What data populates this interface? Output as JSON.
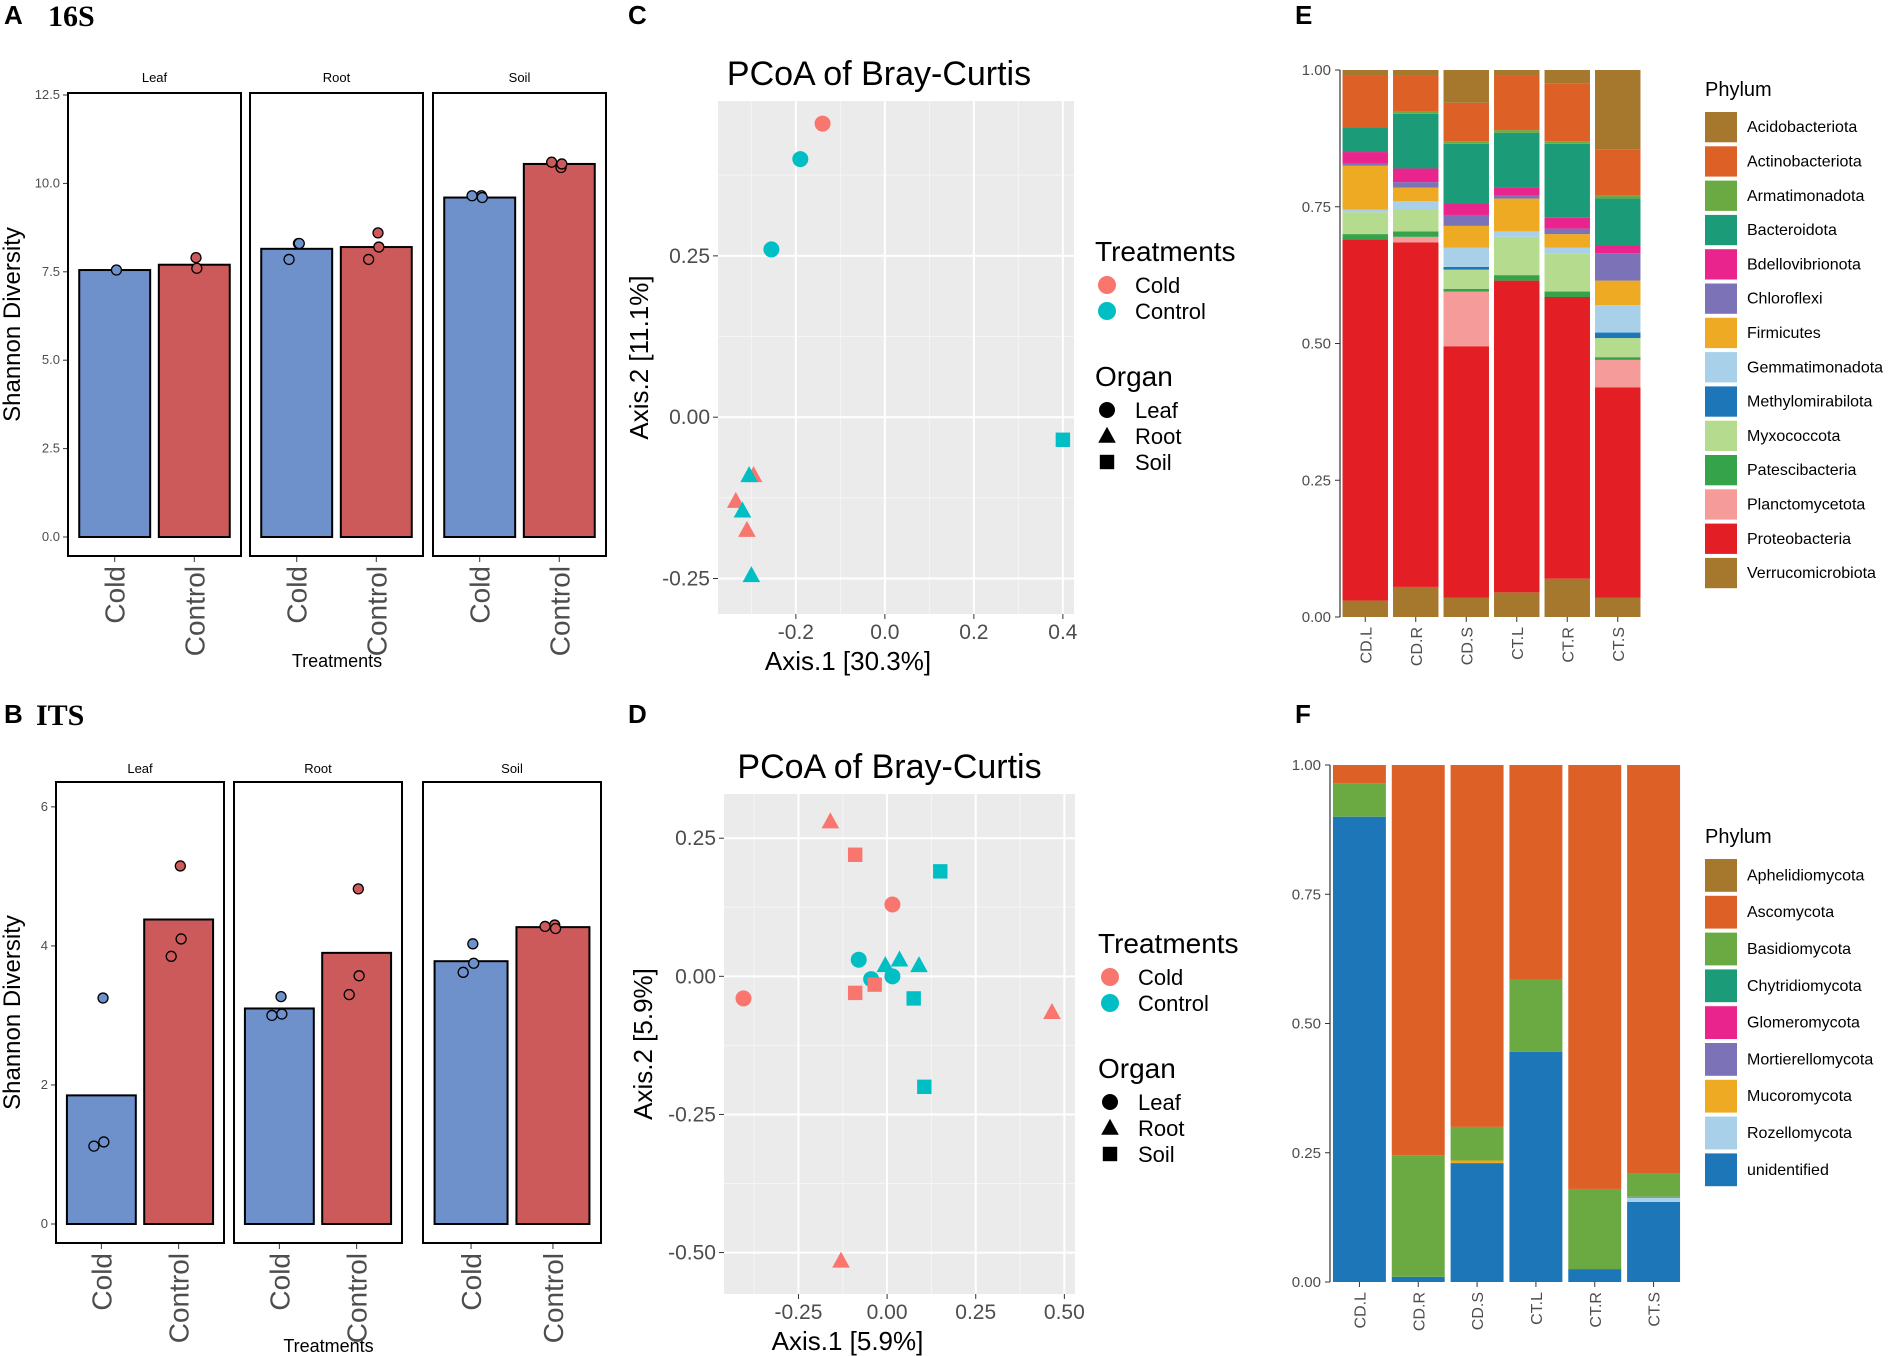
{
  "panel_labels": {
    "A": "A",
    "B": "B",
    "C": "C",
    "D": "D",
    "E": "E",
    "F": "F"
  },
  "panel_subtitles": {
    "A": "16S",
    "B": "ITS"
  },
  "colors": {
    "cold_bar": "#6E91CB",
    "control_bar": "#CD5A5A",
    "cold_point": "#F8766D",
    "control_point": "#00BFC4",
    "pcoa_bg": "#EBEBEB"
  },
  "chart_data": [
    {
      "id": "A",
      "type": "bar",
      "title": "16S",
      "ylabel": "Shannon Diversity",
      "xlabel": "Treatments",
      "ylim": [
        0,
        12.5
      ],
      "yticks": [
        "0.0",
        "2.5",
        "5.0",
        "7.5",
        "10.0",
        "12.5"
      ],
      "ytick_values": [
        0,
        2.5,
        5,
        7.5,
        10,
        12.5
      ],
      "facets": [
        "Leaf",
        "Root",
        "Soil"
      ],
      "categories": [
        "Cold",
        "Control"
      ],
      "bars": [
        [
          7.55,
          7.7
        ],
        [
          8.15,
          8.2
        ],
        [
          9.6,
          10.55
        ]
      ],
      "points": [
        [
          [
            7.55
          ],
          [
            7.9,
            7.6
          ]
        ],
        [
          [
            8.3,
            8.3,
            7.85
          ],
          [
            8.6,
            8.2,
            7.85
          ]
        ],
        [
          [
            9.65,
            9.6,
            9.65
          ],
          [
            10.45,
            10.55,
            10.6
          ]
        ]
      ]
    },
    {
      "id": "B",
      "type": "bar",
      "title": "ITS",
      "ylabel": "Shannon Diversity",
      "xlabel": "Treatments",
      "ylim": [
        0,
        6.3
      ],
      "yticks": [
        "0",
        "2",
        "4",
        "6"
      ],
      "ytick_values": [
        0,
        2,
        4,
        6
      ],
      "facets": [
        "Leaf",
        "Root",
        "Soil"
      ],
      "categories": [
        "Cold",
        "Control"
      ],
      "bars": [
        [
          1.85,
          4.38
        ],
        [
          3.1,
          3.9
        ],
        [
          3.78,
          4.27
        ]
      ],
      "points": [
        [
          [
            3.25,
            1.18,
            1.12
          ],
          [
            5.15,
            4.1,
            3.85
          ]
        ],
        [
          [
            3.27,
            3.02,
            3.0
          ],
          [
            4.82,
            3.57,
            3.3
          ]
        ],
        [
          [
            4.03,
            3.75,
            3.62
          ],
          [
            4.3,
            4.25,
            4.28
          ]
        ]
      ]
    },
    {
      "id": "C",
      "type": "scatter",
      "title": "PCoA of Bray-Curtis",
      "xlabel": "Axis.1   [30.3%]",
      "ylabel": "Axis.2   [11.1%]",
      "xlim": [
        -0.375,
        0.425
      ],
      "ylim": [
        -0.305,
        0.49
      ],
      "xticks": [
        "-0.2",
        "0.0",
        "0.2",
        "0.4"
      ],
      "xtick_values": [
        -0.2,
        0,
        0.2,
        0.4
      ],
      "yticks": [
        "-0.25",
        "0.00",
        "0.25"
      ],
      "ytick_values": [
        -0.25,
        0,
        0.25
      ],
      "points": [
        {
          "x": -0.14,
          "y": 0.455,
          "treatment": "Cold",
          "organ": "Leaf"
        },
        {
          "x": -0.19,
          "y": 0.4,
          "treatment": "Control",
          "organ": "Leaf"
        },
        {
          "x": -0.255,
          "y": 0.26,
          "treatment": "Control",
          "organ": "Leaf"
        },
        {
          "x": 0.4,
          "y": -0.035,
          "treatment": "Control",
          "organ": "Soil"
        },
        {
          "x": -0.295,
          "y": -0.09,
          "treatment": "Cold",
          "organ": "Root"
        },
        {
          "x": -0.305,
          "y": -0.09,
          "treatment": "Control",
          "organ": "Root"
        },
        {
          "x": -0.335,
          "y": -0.13,
          "treatment": "Cold",
          "organ": "Root"
        },
        {
          "x": -0.32,
          "y": -0.145,
          "treatment": "Control",
          "organ": "Root"
        },
        {
          "x": -0.31,
          "y": -0.175,
          "treatment": "Cold",
          "organ": "Root"
        },
        {
          "x": -0.3,
          "y": -0.245,
          "treatment": "Control",
          "organ": "Root"
        }
      ],
      "legend": {
        "treatments_title": "Treatments",
        "treatments": [
          "Cold",
          "Control"
        ],
        "organ_title": "Organ",
        "organs": [
          "Leaf",
          "Root",
          "Soil"
        ]
      }
    },
    {
      "id": "D",
      "type": "scatter",
      "title": "PCoA of Bray-Curtis",
      "xlabel": "Axis.1   [5.9%]",
      "ylabel": "Axis.2   [5.9%]",
      "xlim": [
        -0.46,
        0.53
      ],
      "ylim": [
        -0.575,
        0.33
      ],
      "xticks": [
        "-0.25",
        "0.00",
        "0.25",
        "0.50"
      ],
      "xtick_values": [
        -0.25,
        0,
        0.25,
        0.5
      ],
      "yticks": [
        "-0.50",
        "-0.25",
        "0.00",
        "0.25"
      ],
      "ytick_values": [
        -0.5,
        -0.25,
        0,
        0.25
      ],
      "points": [
        {
          "x": -0.16,
          "y": 0.28,
          "treatment": "Cold",
          "organ": "Root"
        },
        {
          "x": -0.09,
          "y": 0.22,
          "treatment": "Cold",
          "organ": "Soil"
        },
        {
          "x": 0.15,
          "y": 0.19,
          "treatment": "Control",
          "organ": "Soil"
        },
        {
          "x": 0.015,
          "y": 0.13,
          "treatment": "Cold",
          "organ": "Leaf"
        },
        {
          "x": -0.08,
          "y": 0.03,
          "treatment": "Control",
          "organ": "Leaf"
        },
        {
          "x": -0.005,
          "y": 0.02,
          "treatment": "Control",
          "organ": "Root"
        },
        {
          "x": 0.035,
          "y": 0.03,
          "treatment": "Control",
          "organ": "Root"
        },
        {
          "x": 0.09,
          "y": 0.02,
          "treatment": "Control",
          "organ": "Root"
        },
        {
          "x": -0.045,
          "y": -0.005,
          "treatment": "Control",
          "organ": "Leaf"
        },
        {
          "x": 0.015,
          "y": 0.0,
          "treatment": "Control",
          "organ": "Leaf"
        },
        {
          "x": -0.035,
          "y": -0.015,
          "treatment": "Cold",
          "organ": "Soil"
        },
        {
          "x": -0.09,
          "y": -0.03,
          "treatment": "Cold",
          "organ": "Soil"
        },
        {
          "x": 0.075,
          "y": -0.04,
          "treatment": "Control",
          "organ": "Soil"
        },
        {
          "x": -0.405,
          "y": -0.04,
          "treatment": "Cold",
          "organ": "Leaf"
        },
        {
          "x": 0.465,
          "y": -0.065,
          "treatment": "Cold",
          "organ": "Root"
        },
        {
          "x": 0.105,
          "y": -0.2,
          "treatment": "Control",
          "organ": "Soil"
        },
        {
          "x": -0.13,
          "y": -0.515,
          "treatment": "Cold",
          "organ": "Root"
        }
      ],
      "legend": {
        "treatments_title": "Treatments",
        "treatments": [
          "Cold",
          "Control"
        ],
        "organ_title": "Organ",
        "organs": [
          "Leaf",
          "Root",
          "Soil"
        ]
      }
    },
    {
      "id": "E",
      "type": "bar",
      "stacked": true,
      "ylim": [
        0,
        1
      ],
      "yticks": [
        "0.00",
        "0.25",
        "0.50",
        "0.75",
        "1.00"
      ],
      "ytick_values": [
        0,
        0.25,
        0.5,
        0.75,
        1
      ],
      "categories": [
        "CD.L",
        "CD.R",
        "CD.S",
        "CT.L",
        "CT.R",
        "CT.S"
      ],
      "legend_title": "Phylum",
      "series": [
        {
          "name": "Acidobacteriota",
          "color": "#A6782E",
          "values": [
            0.03,
            0.055,
            0.035,
            0.045,
            0.07,
            0.035
          ]
        },
        {
          "name": "Proteobacteria",
          "color": "#E31E24",
          "values": [
            0.66,
            0.63,
            0.46,
            0.57,
            0.515,
            0.385
          ]
        },
        {
          "name": "Planctomycetota",
          "color": "#F59B9A",
          "values": [
            0.0,
            0.01,
            0.1,
            0.0,
            0.0,
            0.05
          ]
        },
        {
          "name": "Patescibacteria",
          "color": "#35A34A",
          "values": [
            0.01,
            0.01,
            0.005,
            0.01,
            0.01,
            0.005
          ]
        },
        {
          "name": "Myxococcota",
          "color": "#B5DB8E",
          "values": [
            0.04,
            0.04,
            0.035,
            0.07,
            0.07,
            0.035
          ]
        },
        {
          "name": "Methylomirabilota",
          "color": "#1D76B8",
          "values": [
            0.0,
            0.0,
            0.005,
            0.0,
            0.0,
            0.01
          ]
        },
        {
          "name": "Gemmatimonadota",
          "color": "#A8D0E8",
          "values": [
            0.005,
            0.015,
            0.035,
            0.01,
            0.01,
            0.05
          ]
        },
        {
          "name": "Firmicutes",
          "color": "#EDAA22",
          "values": [
            0.08,
            0.025,
            0.04,
            0.06,
            0.025,
            0.045
          ]
        },
        {
          "name": "Chloroflexi",
          "color": "#7C72B7",
          "values": [
            0.005,
            0.01,
            0.02,
            0.005,
            0.01,
            0.05
          ]
        },
        {
          "name": "Bdellovibrionota",
          "color": "#E9248C",
          "values": [
            0.02,
            0.025,
            0.02,
            0.015,
            0.02,
            0.015
          ]
        },
        {
          "name": "Bacteroidota",
          "color": "#1C9B78",
          "values": [
            0.045,
            0.1,
            0.11,
            0.1,
            0.135,
            0.085
          ]
        },
        {
          "name": "Armatimonadota",
          "color": "#6BAA43",
          "values": [
            0.0,
            0.005,
            0.005,
            0.005,
            0.005,
            0.005
          ]
        },
        {
          "name": "Actinobacteriota",
          "color": "#DD6027",
          "values": [
            0.095,
            0.065,
            0.07,
            0.1,
            0.105,
            0.085
          ]
        },
        {
          "name": "Verrucomicrobiota",
          "color": "#A6782E",
          "values": [
            0.01,
            0.01,
            0.06,
            0.01,
            0.025,
            0.145
          ]
        }
      ],
      "legend_order": [
        "Acidobacteriota",
        "Actinobacteriota",
        "Armatimonadota",
        "Bacteroidota",
        "Bdellovibrionota",
        "Chloroflexi",
        "Firmicutes",
        "Gemmatimonadota",
        "Methylomirabilota",
        "Myxococcota",
        "Patescibacteria",
        "Planctomycetota",
        "Proteobacteria",
        "Verrucomicrobiota"
      ]
    },
    {
      "id": "F",
      "type": "bar",
      "stacked": true,
      "ylim": [
        0,
        1
      ],
      "yticks": [
        "0.00",
        "0.25",
        "0.50",
        "0.75",
        "1.00"
      ],
      "ytick_values": [
        0,
        0.25,
        0.5,
        0.75,
        1
      ],
      "categories": [
        "CD.L",
        "CD.R",
        "CD.S",
        "CT.L",
        "CT.R",
        "CT.S"
      ],
      "legend_title": "Phylum",
      "series": [
        {
          "name": "unidentified",
          "color": "#1D76B8",
          "values": [
            0.9,
            0.01,
            0.23,
            0.445,
            0.025,
            0.155
          ]
        },
        {
          "name": "Rozellomycota",
          "color": "#A8D0E8",
          "values": [
            0.0,
            0.0,
            0.0,
            0.0,
            0.0,
            0.008
          ]
        },
        {
          "name": "Mucoromycota",
          "color": "#EDAA22",
          "values": [
            0.0,
            0.0,
            0.005,
            0.0,
            0.0,
            0.0
          ]
        },
        {
          "name": "Mortierellomycota",
          "color": "#7C72B7",
          "values": [
            0.0,
            0.0,
            0.0,
            0.0,
            0.0,
            0.002
          ]
        },
        {
          "name": "Glomeromycota",
          "color": "#E9248C",
          "values": [
            0.0,
            0.0,
            0.0,
            0.0,
            0.0,
            0.0
          ]
        },
        {
          "name": "Chytridiomycota",
          "color": "#1C9B78",
          "values": [
            0.0,
            0.0,
            0.0,
            0.0,
            0.0,
            0.0
          ]
        },
        {
          "name": "Basidiomycota",
          "color": "#6BAA43",
          "values": [
            0.065,
            0.235,
            0.065,
            0.14,
            0.155,
            0.045
          ]
        },
        {
          "name": "Ascomycota",
          "color": "#DD6027",
          "values": [
            0.035,
            0.755,
            0.7,
            0.415,
            0.82,
            0.79
          ]
        },
        {
          "name": "Aphelidiomycota",
          "color": "#A6782E",
          "values": [
            0.0,
            0.0,
            0.0,
            0.0,
            0.0,
            0.0
          ]
        }
      ],
      "legend_order": [
        "Aphelidiomycota",
        "Ascomycota",
        "Basidiomycota",
        "Chytridiomycota",
        "Glomeromycota",
        "Mortierellomycota",
        "Mucoromycota",
        "Rozellomycota",
        "unidentified"
      ]
    }
  ]
}
